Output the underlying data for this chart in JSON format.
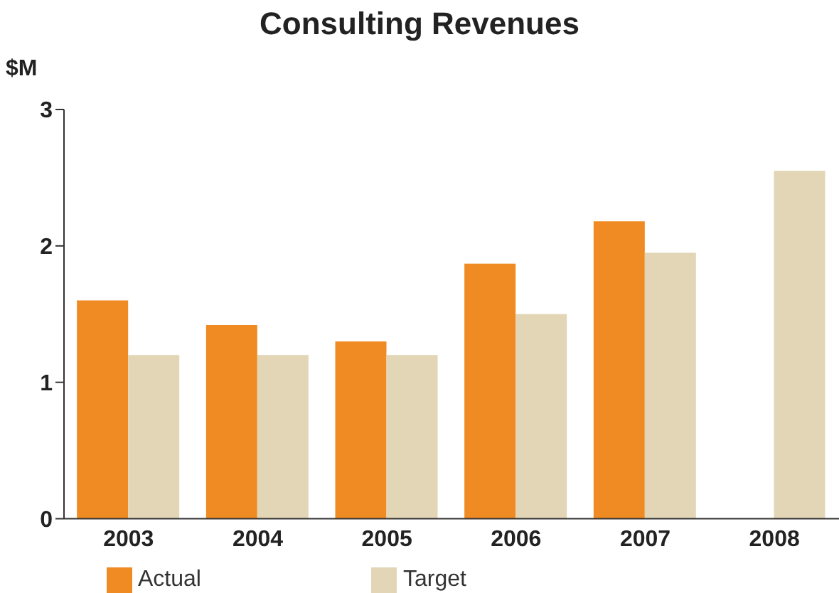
{
  "chart_data": {
    "type": "bar",
    "title": "Consulting Revenues",
    "ylabel": "$M",
    "categories": [
      "2003",
      "2004",
      "2005",
      "2006",
      "2007",
      "2008"
    ],
    "series": [
      {
        "name": "Actual",
        "color": "#ef8b22",
        "values": [
          1.6,
          1.42,
          1.3,
          1.87,
          2.18,
          null
        ]
      },
      {
        "name": "Target",
        "color": "#e2d6b6",
        "values": [
          1.2,
          1.2,
          1.2,
          1.5,
          1.95,
          2.55
        ]
      }
    ],
    "ylim": [
      0,
      3
    ],
    "yticks": [
      0,
      1,
      2,
      3
    ],
    "grid": false,
    "legend": "bottom left"
  }
}
